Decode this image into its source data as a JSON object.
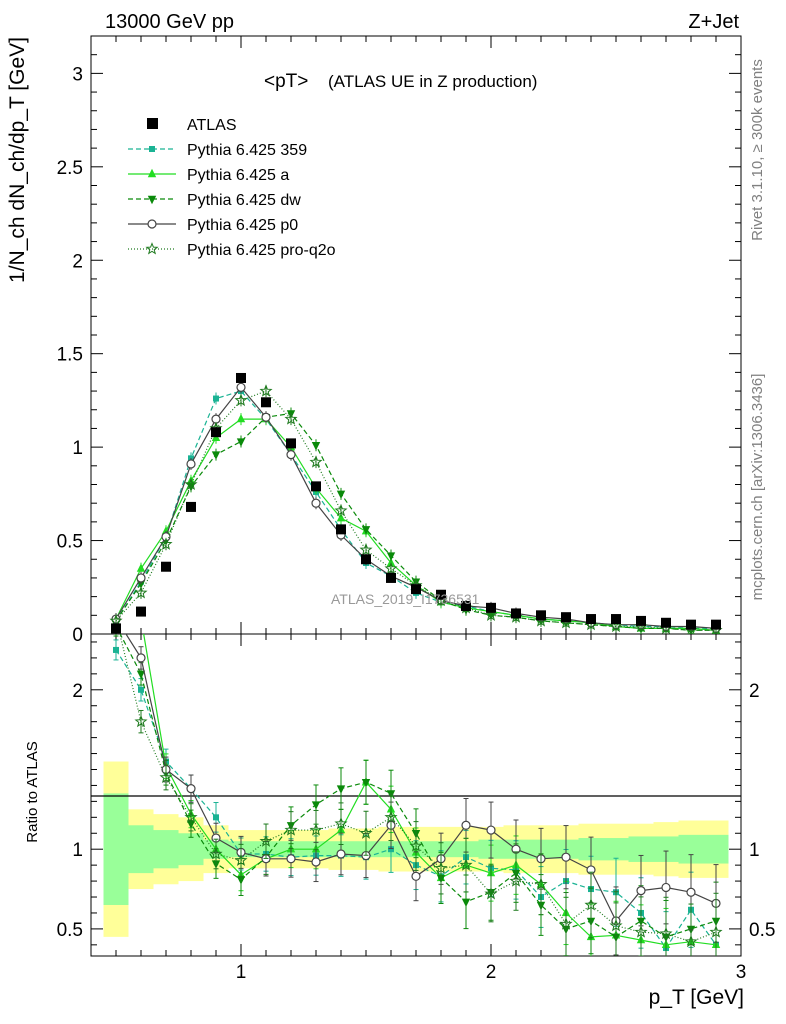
{
  "chart_data": {
    "type": "line",
    "header_left": "13000 GeV pp",
    "header_right": "Z+Jet",
    "title_main": "<pT>",
    "title_sub": "(ATLAS UE in Z production)",
    "ylabel": "1/N_ch dN_ch/dp_T [GeV]",
    "xlabel": "p_T [GeV]",
    "ratio_ylabel": "Ratio to ATLAS",
    "side_label_top": "Rivet 3.1.10, ≥ 300k events",
    "side_label_bottom": "mcplots.cern.ch [arXiv:1306.3436]",
    "watermark": "ATLAS_2019_I1736531",
    "xlim": [
      0.4,
      3.0
    ],
    "ylim": [
      0,
      3.2
    ],
    "ratio_ylim": [
      0.33,
      2.35
    ],
    "x_ticks": [
      "1",
      "2",
      "3"
    ],
    "y_ticks": [
      "0",
      "0.5",
      "1",
      "1.5",
      "2",
      "2.5",
      "3"
    ],
    "ratio_ticks": [
      "0.5",
      "1",
      "2"
    ],
    "legend_position": "top-left",
    "x": [
      0.5,
      0.6,
      0.7,
      0.8,
      0.9,
      1.0,
      1.1,
      1.2,
      1.3,
      1.4,
      1.5,
      1.6,
      1.7,
      1.8,
      1.9,
      2.0,
      2.1,
      2.2,
      2.3,
      2.4,
      2.5,
      2.6,
      2.7,
      2.8,
      2.9
    ],
    "data": {
      "name": "ATLAS",
      "values": [
        0.03,
        0.12,
        0.36,
        0.68,
        1.08,
        1.37,
        1.24,
        1.02,
        0.79,
        0.56,
        0.4,
        0.3,
        0.24,
        0.21,
        0.15,
        0.14,
        0.11,
        0.1,
        0.09,
        0.08,
        0.08,
        0.07,
        0.06,
        0.05,
        0.05
      ],
      "band_inner": [
        0.35,
        0.15,
        0.12,
        0.1,
        0.06,
        0.05,
        0.05,
        0.05,
        0.05,
        0.05,
        0.05,
        0.05,
        0.05,
        0.05,
        0.05,
        0.06,
        0.06,
        0.06,
        0.06,
        0.07,
        0.07,
        0.08,
        0.08,
        0.09,
        0.09
      ],
      "band_outer": [
        0.55,
        0.25,
        0.22,
        0.2,
        0.15,
        0.12,
        0.12,
        0.12,
        0.12,
        0.13,
        0.13,
        0.14,
        0.14,
        0.14,
        0.14,
        0.14,
        0.15,
        0.15,
        0.15,
        0.16,
        0.16,
        0.16,
        0.17,
        0.18,
        0.18
      ]
    },
    "series": [
      {
        "name": "Pythia 6.425 359",
        "color": "#1ab394",
        "dash": "5,3",
        "marker": "square",
        "values": [
          0.07,
          0.28,
          0.52,
          0.94,
          1.26,
          1.3,
          1.15,
          0.96,
          0.76,
          0.56,
          0.38,
          0.31,
          0.22,
          0.17,
          0.15,
          0.12,
          0.1,
          0.08,
          0.07,
          0.06,
          0.05,
          0.04,
          0.04,
          0.03,
          0.03
        ],
        "ratio": [
          2.25,
          2.0,
          1.55,
          1.38,
          1.2,
          0.97,
          0.97,
          0.95,
          0.96,
          0.96,
          0.95,
          1.0,
          0.9,
          0.83,
          0.95,
          0.88,
          0.87,
          0.7,
          0.8,
          0.75,
          0.73,
          0.6,
          0.38,
          0.62,
          0.4
        ]
      },
      {
        "name": "Pythia 6.425 a",
        "color": "#22dd22",
        "dash": "",
        "marker": "tri-up",
        "values": [
          0.08,
          0.35,
          0.55,
          0.82,
          1.05,
          1.15,
          1.15,
          1.0,
          0.78,
          0.62,
          0.55,
          0.38,
          0.26,
          0.17,
          0.14,
          0.12,
          0.1,
          0.08,
          0.07,
          0.06,
          0.04,
          0.03,
          0.03,
          0.03,
          0.02
        ],
        "ratio": [
          3.0,
          2.9,
          1.52,
          1.22,
          1.0,
          0.84,
          0.94,
          1.0,
          1.0,
          1.12,
          1.42,
          1.25,
          0.98,
          0.82,
          0.9,
          0.85,
          0.9,
          0.78,
          0.6,
          0.45,
          0.46,
          0.43,
          0.4,
          0.42,
          0.4
        ]
      },
      {
        "name": "Pythia 6.425 dw",
        "color": "#0a8a0a",
        "dash": "5,3",
        "marker": "tri-down",
        "values": [
          0.07,
          0.27,
          0.5,
          0.79,
          0.96,
          1.03,
          1.16,
          1.18,
          1.01,
          0.75,
          0.56,
          0.42,
          0.28,
          0.18,
          0.13,
          0.1,
          0.09,
          0.07,
          0.06,
          0.05,
          0.04,
          0.03,
          0.03,
          0.02,
          0.02
        ],
        "ratio": [
          2.4,
          2.1,
          1.48,
          1.16,
          0.91,
          0.81,
          0.95,
          1.15,
          1.28,
          1.38,
          1.42,
          1.35,
          1.1,
          0.82,
          0.67,
          0.73,
          0.85,
          0.65,
          0.5,
          0.55,
          0.45,
          0.55,
          0.45,
          0.5,
          0.55
        ]
      },
      {
        "name": "Pythia 6.425 p0",
        "color": "#444444",
        "dash": "",
        "marker": "circle",
        "values": [
          0.08,
          0.3,
          0.52,
          0.91,
          1.15,
          1.32,
          1.16,
          0.96,
          0.7,
          0.53,
          0.4,
          0.31,
          0.25,
          0.18,
          0.15,
          0.14,
          0.11,
          0.09,
          0.08,
          0.06,
          0.05,
          0.05,
          0.04,
          0.04,
          0.03
        ],
        "ratio": [
          3.0,
          2.2,
          1.5,
          1.38,
          1.07,
          0.98,
          0.94,
          0.94,
          0.92,
          0.97,
          0.96,
          1.15,
          0.83,
          0.94,
          1.15,
          1.12,
          1.0,
          0.94,
          0.95,
          0.87,
          0.55,
          0.74,
          0.76,
          0.73,
          0.66
        ]
      },
      {
        "name": "Pythia 6.425 pro-q2o",
        "color": "#1e7a1e",
        "dash": "1,2",
        "marker": "star",
        "values": [
          0.07,
          0.22,
          0.48,
          0.8,
          1.1,
          1.25,
          1.3,
          1.15,
          0.92,
          0.66,
          0.45,
          0.35,
          0.26,
          0.18,
          0.14,
          0.1,
          0.09,
          0.07,
          0.06,
          0.05,
          0.04,
          0.04,
          0.03,
          0.02,
          0.02
        ],
        "ratio": [
          2.5,
          1.8,
          1.45,
          1.2,
          0.97,
          0.93,
          1.05,
          1.12,
          1.12,
          1.16,
          1.1,
          1.2,
          1.02,
          0.88,
          0.9,
          0.72,
          0.8,
          0.78,
          0.53,
          0.65,
          0.52,
          0.48,
          0.47,
          0.42,
          0.48
        ]
      }
    ]
  }
}
